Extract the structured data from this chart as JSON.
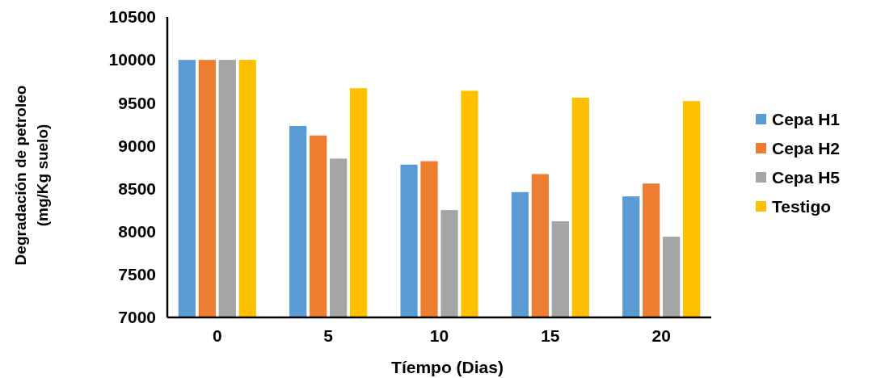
{
  "chart_data": {
    "type": "bar",
    "xlabel": "Tíempo (Dias)",
    "ylabel": "Degradación de petroleo\n(mg/Kg suelo)",
    "categories": [
      "0",
      "5",
      "10",
      "15",
      "20"
    ],
    "series": [
      {
        "name": "Cepa H1",
        "color": "#5b9bd5",
        "values": [
          10000,
          9230,
          8780,
          8460,
          8410
        ]
      },
      {
        "name": "Cepa H2",
        "color": "#ed7d31",
        "values": [
          10000,
          9120,
          8820,
          8670,
          8560
        ]
      },
      {
        "name": "Cepa H5",
        "color": "#a5a5a5",
        "values": [
          10000,
          8850,
          8250,
          8120,
          7940
        ]
      },
      {
        "name": "Testigo",
        "color": "#ffc000",
        "values": [
          10000,
          9670,
          9640,
          9560,
          9520
        ]
      }
    ],
    "ylim": [
      7000,
      10500
    ],
    "yticks": [
      7000,
      7500,
      8000,
      8500,
      9000,
      9500,
      10000,
      10500
    ],
    "legend": "right"
  }
}
